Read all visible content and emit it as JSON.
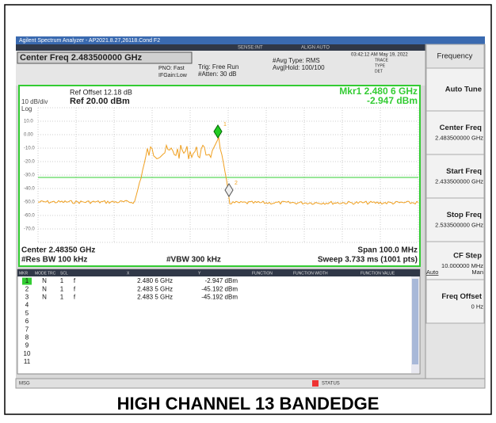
{
  "title_bar": "Agilent Spectrum Analyzer - AP2021.8.27,26118.Cond F2",
  "header": {
    "center_freq": "Center Freq 2.483500000 GHz",
    "pno": "PNO: Fast",
    "ifgain": "IFGain:Low",
    "trig": "Trig: Free Run",
    "atten": "#Atten: 30 dB",
    "avg_type": "#Avg Type: RMS",
    "avg_hold": "Avg|Hold: 100/100",
    "datetime": "03:42:12 AM May 19, 2022",
    "trace": "TRACE",
    "type": "TYPE",
    "det": "DET",
    "sense": "SENSE:INT",
    "align": "ALIGN AUTO"
  },
  "plot": {
    "ref_offset": "Ref Offset 12.18 dB",
    "scale": "10 dB/div",
    "log": "Log",
    "ref_level": "Ref 20.00 dBm",
    "marker_freq": "Mkr1 2.480 6 GHz",
    "marker_level": "-2.947 dBm",
    "y_labels": [
      "10.0",
      "0.00",
      "-10.0",
      "-20.0",
      "-30.0",
      "-40.0",
      "-50.0",
      "-60.0",
      "-70.0"
    ],
    "center": "Center 2.48350 GHz",
    "span": "Span 100.0 MHz",
    "rbw": "#Res BW 100 kHz",
    "vbw": "#VBW 300 kHz",
    "sweep": "Sweep 3.733 ms (1001 pts)"
  },
  "marker_table": {
    "headers": [
      "MKR",
      "MODE",
      "TRC",
      "SCL",
      "X",
      "Y",
      "FUNCTION",
      "FUNCTION WIDTH",
      "FUNCTION VALUE"
    ],
    "rows": [
      [
        "1",
        "N",
        "1",
        "f",
        "2.480 6 GHz",
        "-2.947 dBm"
      ],
      [
        "2",
        "N",
        "1",
        "f",
        "2.483 5 GHz",
        "-45.192 dBm"
      ],
      [
        "3",
        "N",
        "1",
        "f",
        "2.483 5 GHz",
        "-45.192 dBm"
      ],
      [
        "4"
      ],
      [
        "5"
      ],
      [
        "6"
      ],
      [
        "7"
      ],
      [
        "8"
      ],
      [
        "9"
      ],
      [
        "10"
      ],
      [
        "11"
      ]
    ]
  },
  "softkeys": [
    {
      "label": "Frequency"
    },
    {
      "label": "Auto Tune"
    },
    {
      "label": "Center Freq",
      "value": "2.483500000 GHz"
    },
    {
      "label": "Start Freq",
      "value": "2.433500000 GHz"
    },
    {
      "label": "Stop Freq",
      "value": "2.533500000 GHz"
    },
    {
      "label": "CF Step",
      "value": "10.000000 MHz",
      "options": [
        "Auto",
        "Man"
      ]
    },
    {
      "label": "Freq Offset",
      "value": "0 Hz"
    }
  ],
  "status": {
    "msg": "MSG",
    "status": "STATUS"
  },
  "caption": "HIGH CHANNEL 13 BANDEDGE"
}
